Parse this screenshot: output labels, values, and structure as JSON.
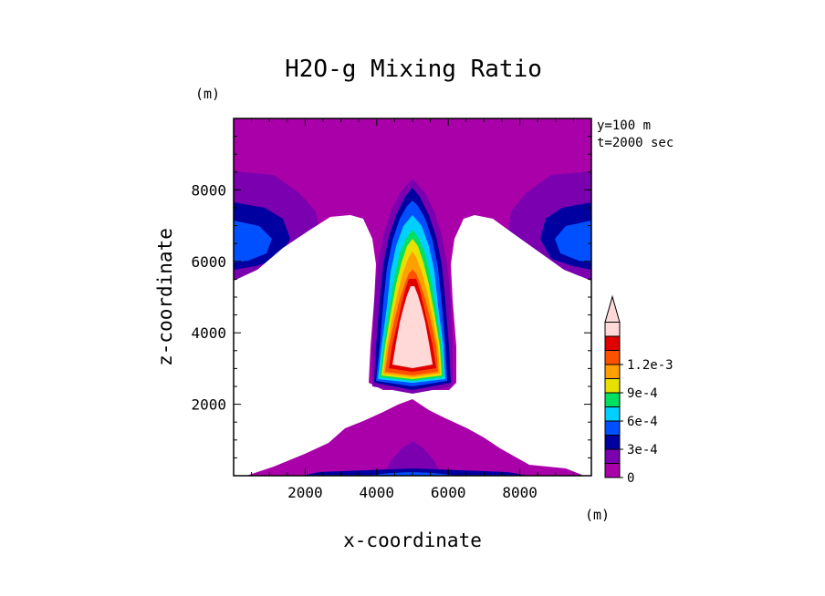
{
  "chart_data": {
    "type": "heatmap",
    "title": "H2O-g Mixing Ratio",
    "xlabel": "x-coordinate",
    "ylabel": "z-coordinate",
    "x_unit": "(m)",
    "y_unit": "(m)",
    "annotation": [
      "y=100 m",
      "t=2000 sec"
    ],
    "xlim": [
      0,
      10000
    ],
    "ylim": [
      0,
      10000
    ],
    "x_ticks": [
      2000,
      4000,
      6000,
      8000
    ],
    "x_tick_labels": [
      "2000",
      "4000",
      "6000",
      "8000"
    ],
    "y_ticks": [
      2000,
      4000,
      6000,
      8000
    ],
    "y_tick_labels": [
      "2000",
      "4000",
      "6000",
      "8000"
    ],
    "colorbar": {
      "levels": [
        0,
        0.00015,
        0.0003,
        0.00045,
        0.0006,
        0.00075,
        0.0009,
        0.00105,
        0.0012,
        0.00135
      ],
      "colors": [
        "#aa00aa",
        "#7a00b0",
        "#0000a0",
        "#0050ff",
        "#00d0ff",
        "#00e060",
        "#e8e000",
        "#ffa000",
        "#ff5000",
        "#e00000",
        "#ffd8d8"
      ],
      "labels": [
        "0",
        "3e-4",
        "6e-4",
        "9e-4",
        "1.2e-3"
      ]
    }
  }
}
